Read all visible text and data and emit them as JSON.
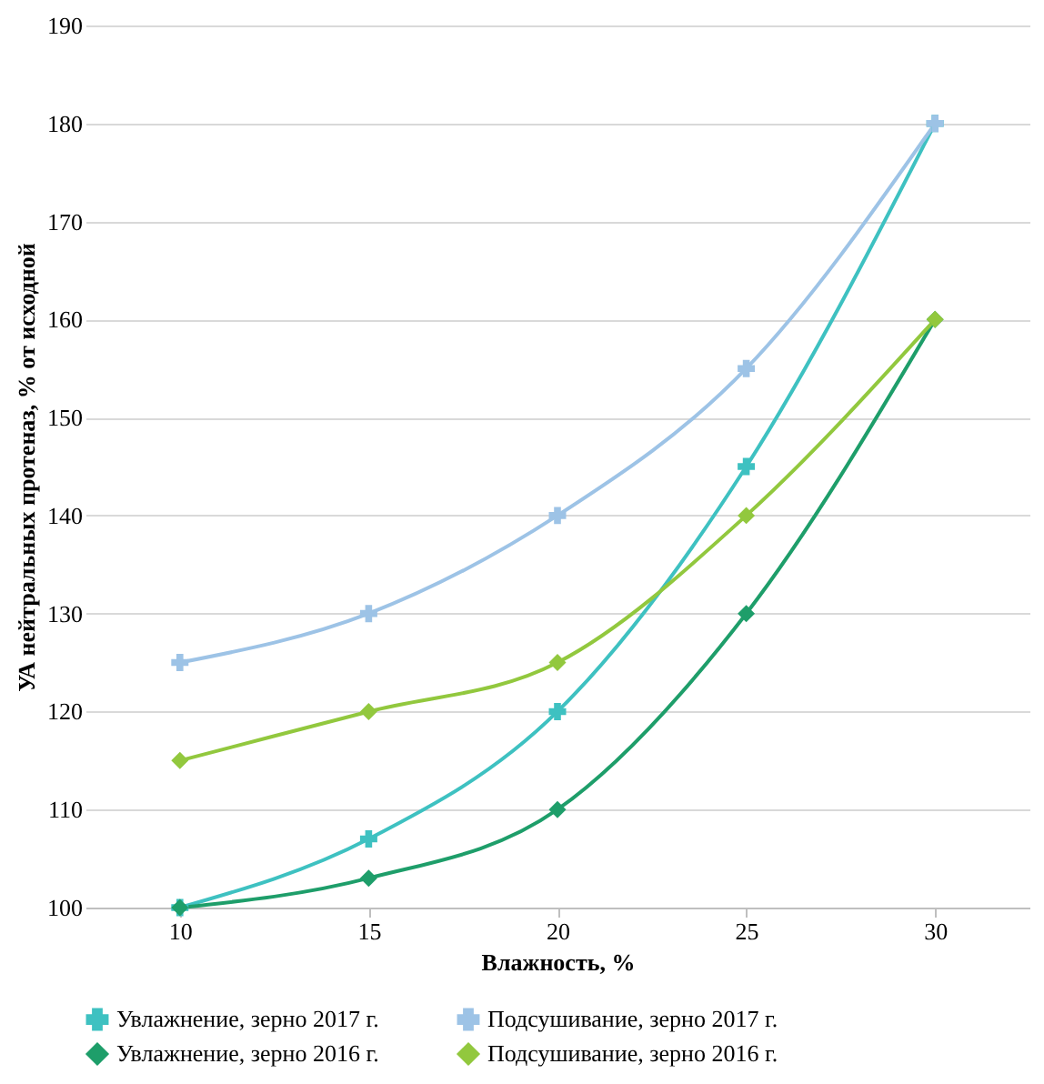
{
  "chart_data": {
    "type": "line",
    "xlabel": "Влажность, %",
    "ylabel": "УА нейтральных протеназ, % от исходной",
    "categories": [
      "10",
      "15",
      "20",
      "25",
      "30"
    ],
    "ylim": [
      100,
      190
    ],
    "yticks": [
      100,
      110,
      120,
      130,
      140,
      150,
      160,
      170,
      180,
      190
    ],
    "grid": "y",
    "legend": "bottom",
    "line_style": "solid",
    "series": [
      {
        "name": "Увлажнение, зерно 2017 г.",
        "color": "#3ec1c1",
        "marker": "cross",
        "values": [
          100,
          107,
          120,
          145,
          180
        ]
      },
      {
        "name": "Подсушивание, зерно 2017 г.",
        "color": "#9dc3e6",
        "marker": "cross",
        "values": [
          125,
          130,
          140,
          155,
          180
        ]
      },
      {
        "name": "Увлажнение, зерно 2016 г.",
        "color": "#1e9e6a",
        "marker": "diamond",
        "values": [
          100,
          103,
          110,
          130,
          160
        ]
      },
      {
        "name": "Подсушивание, зерно 2016 г.",
        "color": "#92c83e",
        "marker": "diamond",
        "values": [
          115,
          120,
          125,
          140,
          160
        ]
      }
    ]
  }
}
